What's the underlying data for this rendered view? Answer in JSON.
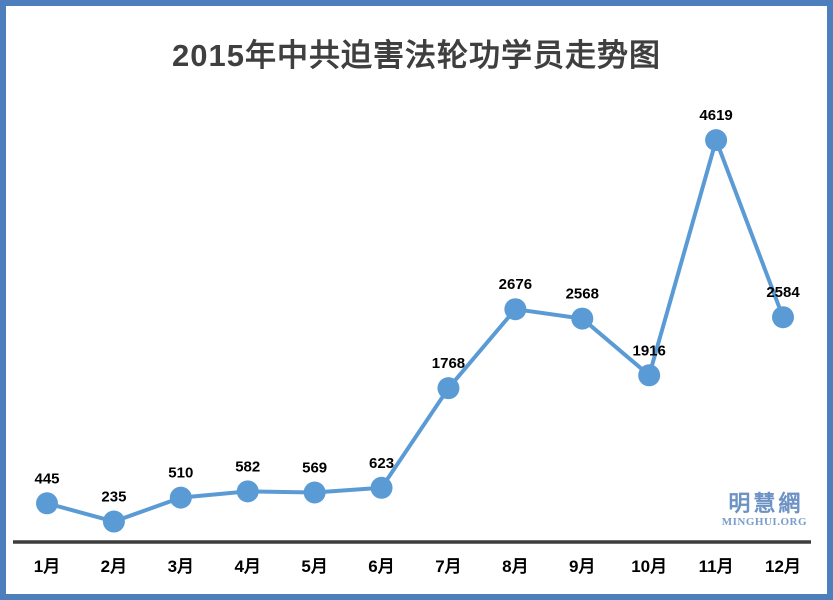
{
  "chart_data": {
    "type": "line",
    "title": "2015年中共迫害法轮功学员走势图",
    "categories": [
      "1月",
      "2月",
      "3月",
      "4月",
      "5月",
      "6月",
      "7月",
      "8月",
      "9月",
      "10月",
      "11月",
      "12月"
    ],
    "values": [
      445,
      235,
      510,
      582,
      569,
      623,
      1768,
      2676,
      2568,
      1916,
      4619,
      2584
    ],
    "xlabel": "",
    "ylabel": "",
    "ylim": [
      0,
      5000
    ],
    "grid": false,
    "legend": "none",
    "data_labels": true,
    "marker": "circle"
  },
  "watermark": {
    "cjk": "明慧網",
    "latin": "MINGHUI.ORG"
  },
  "colors": {
    "line": "#5b9bd5",
    "marker": "#5b9bd5",
    "axis": "#3d3d3d",
    "data_label": "#000000",
    "tick_label": "#000000",
    "title": "#3f3f3f",
    "border": "#4c7fbc",
    "watermark": "#6d92c4",
    "background": "#ffffff"
  }
}
